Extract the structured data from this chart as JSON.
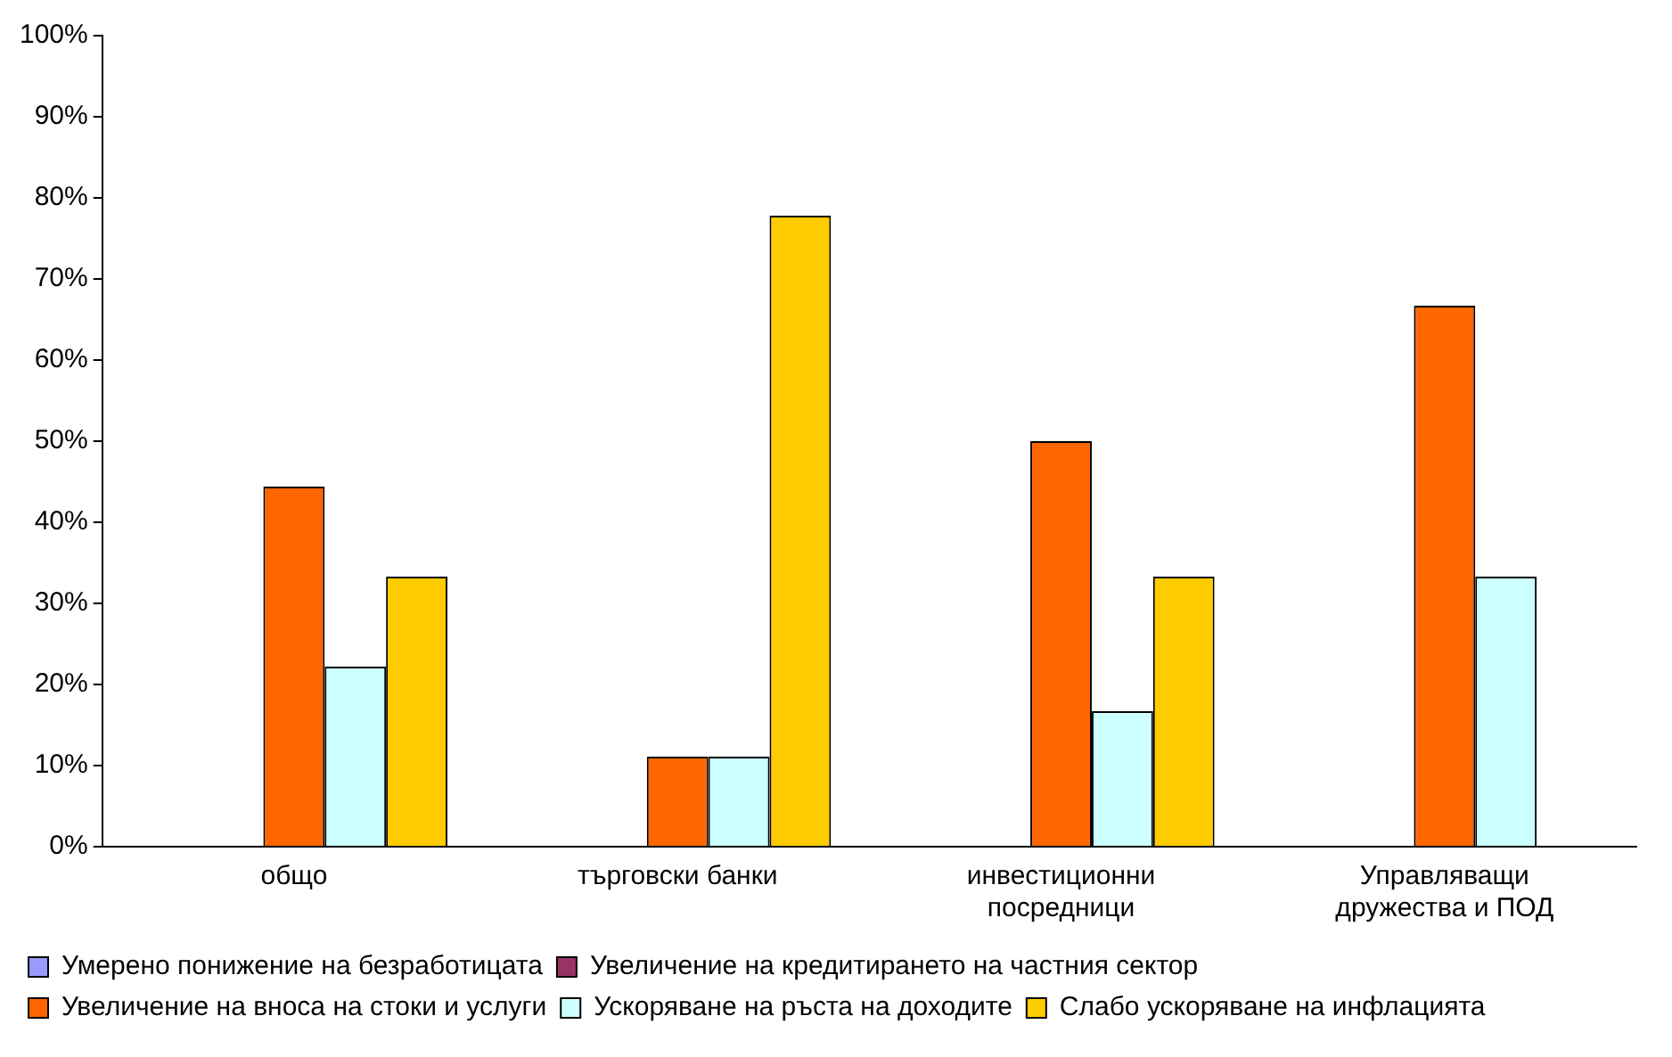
{
  "chart_data": {
    "type": "bar",
    "categories": [
      "общо",
      "търговски банки",
      "инвестиционни посредници",
      "Управляващи дружества и ПОД"
    ],
    "series": [
      {
        "name": "Умерено понижение на безработицата",
        "color": "#9999ff",
        "values": [
          0,
          0,
          0,
          0
        ]
      },
      {
        "name": "Увеличение на кредитирането на частния сектор",
        "color": "#993366",
        "values": [
          0,
          0,
          0,
          0
        ]
      },
      {
        "name": "Увеличение на вноса на стоки и услуги",
        "color": "#ff6600",
        "values": [
          44.4,
          11.1,
          50,
          66.7
        ]
      },
      {
        "name": "Ускоряване на ръста на доходите",
        "color": "#ccffff",
        "values": [
          22.2,
          11.1,
          16.7,
          33.3
        ]
      },
      {
        "name": "Слабо ускоряване на инфлацията",
        "color": "#ffcc00",
        "values": [
          33.3,
          77.8,
          33.3,
          0
        ]
      }
    ],
    "ylim": [
      0,
      100
    ],
    "yticks": [
      {
        "value": 0,
        "label": "0%"
      },
      {
        "value": 10,
        "label": "10%"
      },
      {
        "value": 20,
        "label": "20%"
      },
      {
        "value": 30,
        "label": "30%"
      },
      {
        "value": 40,
        "label": "40%"
      },
      {
        "value": 50,
        "label": "50%"
      },
      {
        "value": 60,
        "label": "60%"
      },
      {
        "value": 70,
        "label": "70%"
      },
      {
        "value": 80,
        "label": "80%"
      },
      {
        "value": 90,
        "label": "90%"
      },
      {
        "value": 100,
        "label": "100%"
      }
    ],
    "grid": false,
    "legend": "bottom"
  }
}
